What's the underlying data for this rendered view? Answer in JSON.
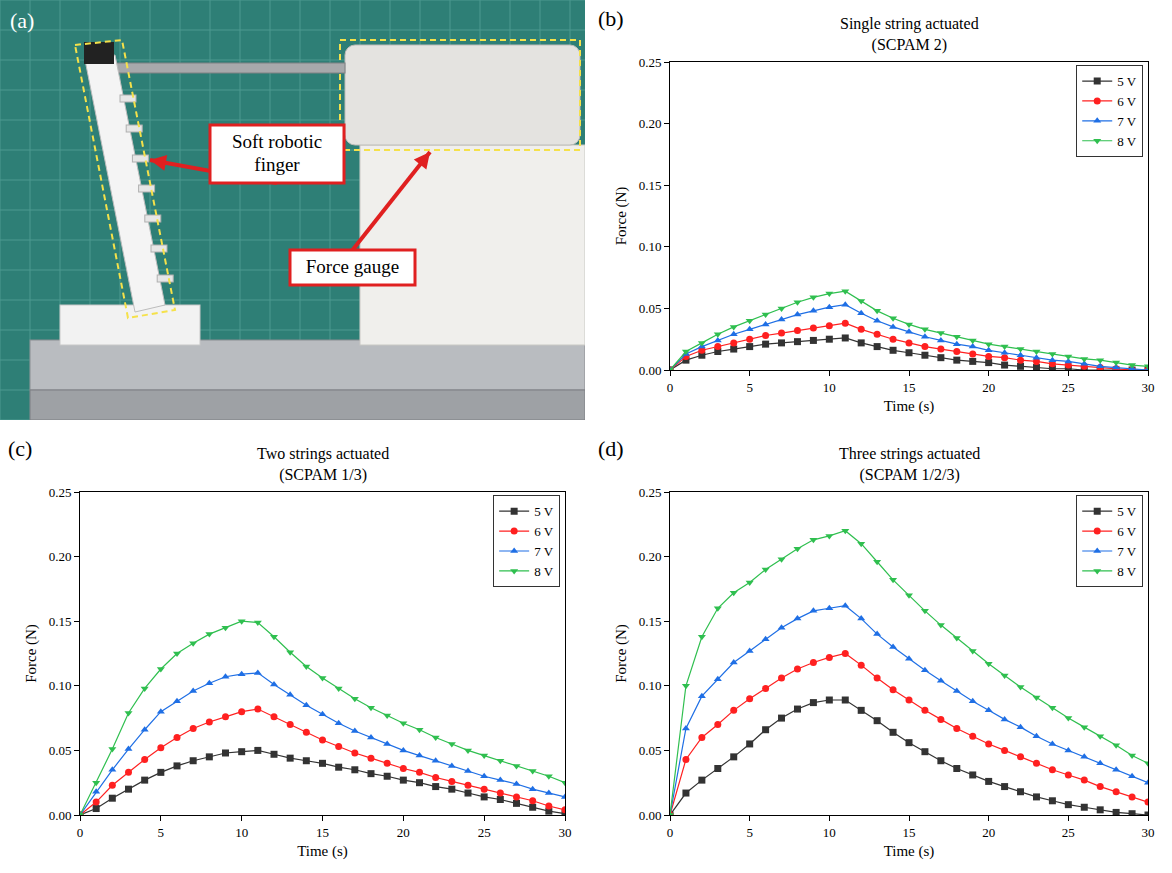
{
  "photo": {
    "label": "(a)",
    "callouts": [
      "Soft robotic finger",
      "Force gauge"
    ]
  },
  "chart_data": [
    {
      "type": "line",
      "panel": "(b)",
      "title": "Single string actuated",
      "subtitle": "(SCPAM 2)",
      "x_label": "Time (s)",
      "y_label": "Force (N)",
      "x": [
        0,
        1,
        2,
        3,
        4,
        5,
        6,
        7,
        8,
        9,
        10,
        11,
        12,
        13,
        14,
        15,
        16,
        17,
        18,
        19,
        20,
        21,
        22,
        23,
        24,
        25,
        26,
        27,
        28,
        29,
        30
      ],
      "xlim": [
        0,
        30
      ],
      "xticks": [
        0,
        5,
        10,
        15,
        20,
        25,
        30
      ],
      "ylim": [
        0,
        0.25
      ],
      "yticks": [
        {
          "value": 0,
          "label": "0.00"
        },
        {
          "value": 0.05,
          "label": "0.05"
        },
        {
          "value": 0.1,
          "label": "0.10"
        },
        {
          "value": 0.15,
          "label": "0.15"
        },
        {
          "value": 0.2,
          "label": "0.20"
        },
        {
          "value": 0.25,
          "label": "0.25"
        }
      ],
      "grid": false,
      "legend": "top right",
      "series": [
        {
          "name": "5 V",
          "color": "#333333",
          "marker": "square",
          "line_style": "solid",
          "values": [
            0,
            0.008,
            0.012,
            0.015,
            0.017,
            0.019,
            0.021,
            0.022,
            0.023,
            0.024,
            0.025,
            0.026,
            0.022,
            0.019,
            0.016,
            0.014,
            0.012,
            0.01,
            0.008,
            0.007,
            0.006,
            0.004,
            0.003,
            0.002,
            0.001,
            0.001,
            0,
            0,
            0,
            0,
            0
          ]
        },
        {
          "name": "6 V",
          "color": "#ff2020",
          "marker": "circle",
          "line_style": "solid",
          "values": [
            0,
            0.011,
            0.016,
            0.019,
            0.022,
            0.025,
            0.028,
            0.03,
            0.032,
            0.034,
            0.036,
            0.038,
            0.033,
            0.029,
            0.025,
            0.022,
            0.019,
            0.017,
            0.015,
            0.013,
            0.011,
            0.01,
            0.008,
            0.007,
            0.005,
            0.004,
            0.003,
            0.002,
            0.001,
            0,
            0
          ]
        },
        {
          "name": "7 V",
          "color": "#1f6fe5",
          "marker": "triangle-up",
          "line_style": "solid",
          "values": [
            0,
            0.013,
            0.019,
            0.024,
            0.029,
            0.033,
            0.037,
            0.041,
            0.045,
            0.048,
            0.051,
            0.053,
            0.046,
            0.04,
            0.035,
            0.031,
            0.027,
            0.024,
            0.021,
            0.019,
            0.016,
            0.014,
            0.012,
            0.01,
            0.008,
            0.007,
            0.005,
            0.003,
            0.002,
            0.001,
            0
          ]
        },
        {
          "name": "8 V",
          "color": "#2fbf4f",
          "marker": "triangle-down",
          "line_style": "solid",
          "values": [
            0,
            0.015,
            0.022,
            0.029,
            0.035,
            0.04,
            0.045,
            0.05,
            0.055,
            0.059,
            0.062,
            0.064,
            0.056,
            0.048,
            0.042,
            0.037,
            0.033,
            0.03,
            0.027,
            0.024,
            0.021,
            0.019,
            0.017,
            0.015,
            0.013,
            0.011,
            0.009,
            0.008,
            0.006,
            0.004,
            0.003
          ]
        }
      ]
    },
    {
      "type": "line",
      "panel": "(c)",
      "title": "Two strings actuated",
      "subtitle": "(SCPAM 1/3)",
      "x_label": "Time (s)",
      "y_label": "Force (N)",
      "x": [
        0,
        1,
        2,
        3,
        4,
        5,
        6,
        7,
        8,
        9,
        10,
        11,
        12,
        13,
        14,
        15,
        16,
        17,
        18,
        19,
        20,
        21,
        22,
        23,
        24,
        25,
        26,
        27,
        28,
        29,
        30
      ],
      "xlim": [
        0,
        30
      ],
      "xticks": [
        0,
        5,
        10,
        15,
        20,
        25,
        30
      ],
      "ylim": [
        0,
        0.25
      ],
      "yticks": [
        {
          "value": 0,
          "label": "0.00"
        },
        {
          "value": 0.05,
          "label": "0.05"
        },
        {
          "value": 0.1,
          "label": "0.10"
        },
        {
          "value": 0.15,
          "label": "0.15"
        },
        {
          "value": 0.2,
          "label": "0.20"
        },
        {
          "value": 0.25,
          "label": "0.25"
        }
      ],
      "grid": false,
      "legend": "top right",
      "series": [
        {
          "name": "5 V",
          "color": "#333333",
          "marker": "square",
          "line_style": "solid",
          "values": [
            0,
            0.005,
            0.013,
            0.02,
            0.027,
            0.033,
            0.038,
            0.042,
            0.045,
            0.048,
            0.049,
            0.05,
            0.047,
            0.044,
            0.042,
            0.04,
            0.037,
            0.035,
            0.032,
            0.03,
            0.027,
            0.025,
            0.022,
            0.02,
            0.017,
            0.014,
            0.012,
            0.009,
            0.006,
            0.003,
            0.001
          ]
        },
        {
          "name": "6 V",
          "color": "#ff2020",
          "marker": "circle",
          "line_style": "solid",
          "values": [
            0,
            0.01,
            0.023,
            0.033,
            0.043,
            0.052,
            0.06,
            0.067,
            0.072,
            0.076,
            0.08,
            0.082,
            0.076,
            0.07,
            0.064,
            0.058,
            0.053,
            0.048,
            0.044,
            0.04,
            0.036,
            0.033,
            0.029,
            0.026,
            0.023,
            0.02,
            0.017,
            0.014,
            0.011,
            0.007,
            0.004
          ]
        },
        {
          "name": "7 V",
          "color": "#1f6fe5",
          "marker": "triangle-up",
          "line_style": "solid",
          "values": [
            0,
            0.018,
            0.035,
            0.051,
            0.066,
            0.08,
            0.088,
            0.096,
            0.102,
            0.107,
            0.109,
            0.11,
            0.101,
            0.093,
            0.085,
            0.078,
            0.071,
            0.065,
            0.06,
            0.055,
            0.05,
            0.046,
            0.042,
            0.038,
            0.034,
            0.03,
            0.027,
            0.024,
            0.02,
            0.017,
            0.014
          ]
        },
        {
          "name": "8 V",
          "color": "#2fbf4f",
          "marker": "triangle-down",
          "line_style": "solid",
          "values": [
            0,
            0.025,
            0.051,
            0.079,
            0.098,
            0.113,
            0.125,
            0.133,
            0.14,
            0.145,
            0.15,
            0.149,
            0.138,
            0.126,
            0.115,
            0.106,
            0.098,
            0.09,
            0.083,
            0.077,
            0.071,
            0.066,
            0.06,
            0.055,
            0.05,
            0.046,
            0.042,
            0.038,
            0.034,
            0.03,
            0.025
          ]
        }
      ]
    },
    {
      "type": "line",
      "panel": "(d)",
      "title": "Three strings actuated",
      "subtitle": "(SCPAM 1/2/3)",
      "x_label": "Time (s)",
      "y_label": "Force (N)",
      "x": [
        0,
        1,
        2,
        3,
        4,
        5,
        6,
        7,
        8,
        9,
        10,
        11,
        12,
        13,
        14,
        15,
        16,
        17,
        18,
        19,
        20,
        21,
        22,
        23,
        24,
        25,
        26,
        27,
        28,
        29,
        30
      ],
      "xlim": [
        0,
        30
      ],
      "xticks": [
        0,
        5,
        10,
        15,
        20,
        25,
        30
      ],
      "ylim": [
        0,
        0.25
      ],
      "yticks": [
        {
          "value": 0,
          "label": "0.00"
        },
        {
          "value": 0.05,
          "label": "0.05"
        },
        {
          "value": 0.1,
          "label": "0.10"
        },
        {
          "value": 0.15,
          "label": "0.15"
        },
        {
          "value": 0.2,
          "label": "0.20"
        },
        {
          "value": 0.25,
          "label": "0.25"
        }
      ],
      "grid": false,
      "legend": "top right",
      "series": [
        {
          "name": "5 V",
          "color": "#333333",
          "marker": "square",
          "line_style": "solid",
          "values": [
            0,
            0.017,
            0.027,
            0.036,
            0.045,
            0.055,
            0.066,
            0.075,
            0.082,
            0.087,
            0.089,
            0.089,
            0.081,
            0.073,
            0.064,
            0.056,
            0.049,
            0.042,
            0.036,
            0.031,
            0.026,
            0.022,
            0.018,
            0.014,
            0.011,
            0.008,
            0.006,
            0.004,
            0.002,
            0.001,
            0
          ]
        },
        {
          "name": "6 V",
          "color": "#ff2020",
          "marker": "circle",
          "line_style": "solid",
          "values": [
            0,
            0.043,
            0.06,
            0.07,
            0.081,
            0.09,
            0.098,
            0.106,
            0.113,
            0.118,
            0.122,
            0.125,
            0.116,
            0.106,
            0.097,
            0.089,
            0.081,
            0.074,
            0.067,
            0.061,
            0.055,
            0.05,
            0.045,
            0.04,
            0.035,
            0.031,
            0.027,
            0.022,
            0.018,
            0.014,
            0.01
          ]
        },
        {
          "name": "7 V",
          "color": "#1f6fe5",
          "marker": "triangle-up",
          "line_style": "solid",
          "values": [
            0,
            0.067,
            0.092,
            0.105,
            0.118,
            0.127,
            0.136,
            0.145,
            0.152,
            0.158,
            0.16,
            0.162,
            0.152,
            0.14,
            0.13,
            0.121,
            0.112,
            0.104,
            0.096,
            0.088,
            0.081,
            0.074,
            0.068,
            0.061,
            0.055,
            0.05,
            0.045,
            0.04,
            0.035,
            0.03,
            0.025
          ]
        },
        {
          "name": "8 V",
          "color": "#2fbf4f",
          "marker": "triangle-down",
          "line_style": "solid",
          "values": [
            0,
            0.1,
            0.138,
            0.16,
            0.172,
            0.18,
            0.19,
            0.198,
            0.206,
            0.213,
            0.216,
            0.22,
            0.21,
            0.196,
            0.182,
            0.17,
            0.158,
            0.147,
            0.137,
            0.127,
            0.117,
            0.108,
            0.099,
            0.091,
            0.083,
            0.075,
            0.068,
            0.061,
            0.054,
            0.046,
            0.04
          ]
        }
      ]
    }
  ]
}
